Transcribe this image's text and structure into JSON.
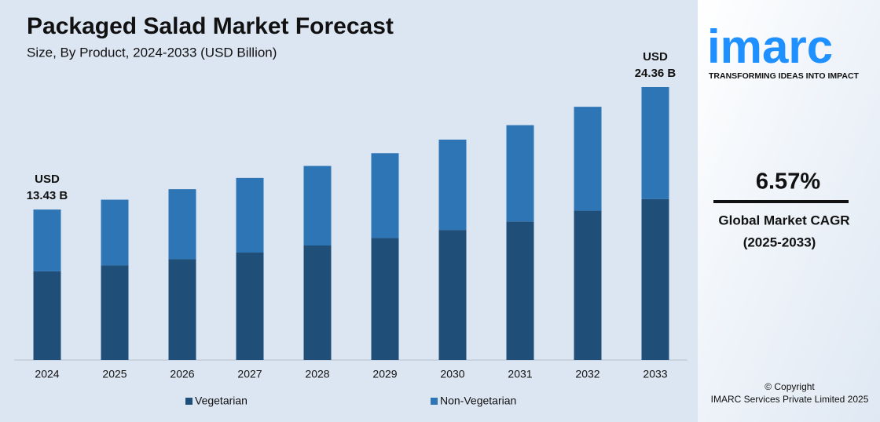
{
  "chart_data": {
    "type": "stacked-bar",
    "title": "Packaged Salad Market Forecast",
    "subtitle": "Size, By Product, 2024-2033 (USD Billion)",
    "categories": [
      "2024",
      "2025",
      "2026",
      "2027",
      "2028",
      "2029",
      "2030",
      "2031",
      "2032",
      "2033"
    ],
    "series": [
      {
        "name": "Vegetarian",
        "color": "#1f4e79",
        "values": [
          7.92,
          8.44,
          9.0,
          9.59,
          10.22,
          10.89,
          11.61,
          12.37,
          13.33,
          14.37
        ]
      },
      {
        "name": "Non-Vegetarian",
        "color": "#2e75b6",
        "values": [
          5.51,
          5.87,
          6.25,
          6.66,
          7.1,
          7.57,
          8.06,
          8.59,
          9.27,
          9.99
        ]
      }
    ],
    "annotations": [
      {
        "lines": [
          "USD",
          "13.43 B"
        ]
      },
      {
        "lines": [
          "USD",
          "24.36 B"
        ]
      }
    ],
    "legend": "bottom"
  },
  "side_panel": {
    "logo": "imarc",
    "tagline": "TRANSFORMING IDEAS INTO IMPACT",
    "cagr": "6.57%",
    "cagr_label": "Global Market CAGR",
    "cagr_period": "(2025-2033)",
    "copyright": "© Copyright",
    "company": "IMARC Services Private Limited 2025"
  }
}
